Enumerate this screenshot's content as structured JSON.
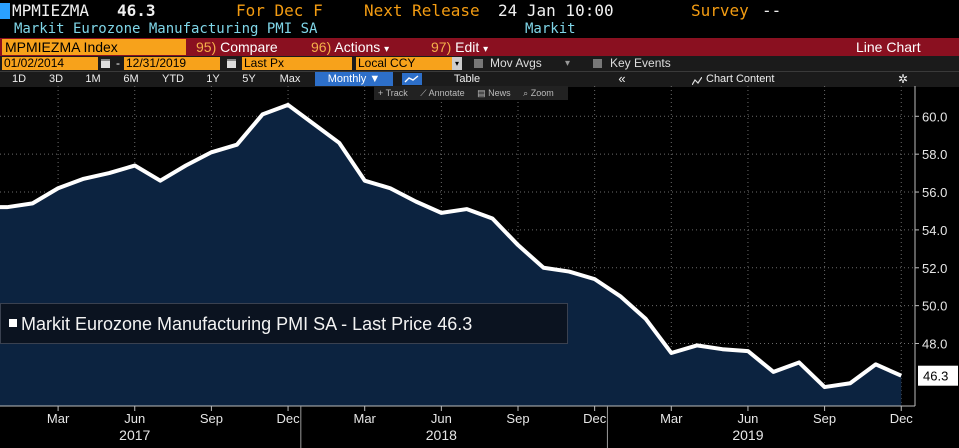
{
  "header": {
    "ticker": "MPMIEZMA",
    "price": "46.3",
    "period": "For Dec F",
    "next_release_label": "Next Release",
    "next_release_value": "24 Jan 10:00",
    "survey_label": "Survey",
    "survey_value": "--",
    "description": "Markit Eurozone Manufacturing PMI SA",
    "source": "Markit"
  },
  "menu": {
    "security": "MPMIEZMA Index",
    "compare_num": "95)",
    "compare": "Compare",
    "actions_num": "96)",
    "actions": "Actions",
    "edit_num": "97)",
    "edit": "Edit",
    "caret": "▾",
    "chart_type": "Line Chart"
  },
  "settings": {
    "start_date": "01/02/2014",
    "dash": "-",
    "end_date": "12/31/2019",
    "field": "Last Px",
    "currency": "Local CCY",
    "mov_avgs": "Mov Avgs",
    "key_events": "Key Events"
  },
  "ranges": {
    "r1d": "1D",
    "r3d": "3D",
    "r1m": "1M",
    "r6m": "6M",
    "ytd": "YTD",
    "r1y": "1Y",
    "r5y": "5Y",
    "max": "Max",
    "frequency": "Monthly ▼",
    "table": "Table",
    "collapse": "«",
    "chart_content": "Chart Content",
    "gear": "✲"
  },
  "tools": {
    "track": "+ Track",
    "annotate": "⟋ Annotate",
    "news": "▤ News",
    "zoom": "⌕ Zoom"
  },
  "legend": {
    "text": "Markit Eurozone Manufacturing PMI SA - Last Price",
    "value": "46.3"
  },
  "colors": {
    "line": "#ffffff",
    "fill": "#0c2340",
    "grid": "#6b6b6b",
    "accent": "#f7a21b",
    "menu_bar": "#8a1020"
  },
  "chart_data": {
    "type": "area",
    "title": "Markit Eurozone Manufacturing PMI SA",
    "series": [
      {
        "name": "Markit Eurozone Manufacturing PMI SA - Last Price",
        "x": [
          "2017-01",
          "2017-02",
          "2017-03",
          "2017-04",
          "2017-05",
          "2017-06",
          "2017-07",
          "2017-08",
          "2017-09",
          "2017-10",
          "2017-11",
          "2017-12",
          "2018-01",
          "2018-02",
          "2018-03",
          "2018-04",
          "2018-05",
          "2018-06",
          "2018-07",
          "2018-08",
          "2018-09",
          "2018-10",
          "2018-11",
          "2018-12",
          "2019-01",
          "2019-02",
          "2019-03",
          "2019-04",
          "2019-05",
          "2019-06",
          "2019-07",
          "2019-08",
          "2019-09",
          "2019-10",
          "2019-11",
          "2019-12"
        ],
        "values": [
          55.2,
          55.4,
          56.2,
          56.7,
          57.0,
          57.4,
          56.6,
          57.4,
          58.1,
          58.5,
          60.1,
          60.6,
          59.6,
          58.6,
          56.6,
          56.2,
          55.5,
          54.9,
          55.1,
          54.6,
          53.2,
          52.0,
          51.8,
          51.4,
          50.5,
          49.3,
          47.5,
          47.9,
          47.7,
          47.6,
          46.5,
          47.0,
          45.7,
          45.9,
          46.9,
          46.3
        ]
      }
    ],
    "x_tick_labels": [
      "Mar",
      "Jun",
      "Sep",
      "Dec",
      "Mar",
      "Jun",
      "Sep",
      "Dec",
      "Mar",
      "Jun",
      "Sep",
      "Dec"
    ],
    "x_tick_months": [
      "2017-03",
      "2017-06",
      "2017-09",
      "2017-12",
      "2018-03",
      "2018-06",
      "2018-09",
      "2018-12",
      "2019-03",
      "2019-06",
      "2019-09",
      "2019-12"
    ],
    "year_labels": [
      "2017",
      "2018",
      "2019"
    ],
    "year_months": [
      "2017-06",
      "2018-06",
      "2019-06"
    ],
    "year_dividers": [
      "2017-12",
      "2018-12"
    ],
    "y_ticks": [
      48,
      50,
      52,
      54,
      56,
      58,
      60
    ],
    "y_tick_labels": [
      "48.0",
      "50.0",
      "52.0",
      "54.0",
      "56.0",
      "58.0",
      "60.0"
    ],
    "last_value_label": "46.3",
    "ylim": [
      44.7,
      61.6
    ],
    "grid": true,
    "legend_position": "bottom-left"
  }
}
